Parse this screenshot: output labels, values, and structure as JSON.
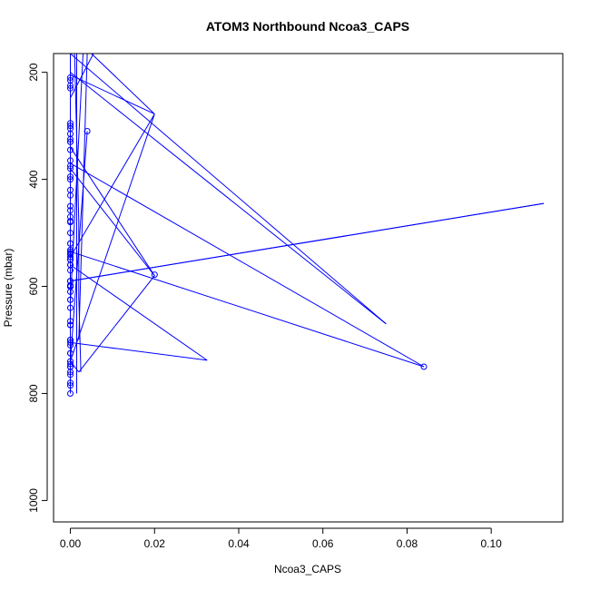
{
  "chart_data": {
    "type": "scatter",
    "title": "ATOM3 Northbound Ncoa3_CAPS",
    "xlabel": "Ncoa3_CAPS",
    "ylabel": "Pressure (mbar)",
    "xlim": [
      -0.004,
      0.117
    ],
    "ylim": [
      1040,
      165
    ],
    "y_reversed": true,
    "x_ticks": [
      "0.00",
      "0.02",
      "0.04",
      "0.06",
      "0.08",
      "0.10"
    ],
    "x_tick_values": [
      0,
      0.02,
      0.04,
      0.06,
      0.08,
      0.1
    ],
    "y_ticks": [
      "200",
      "400",
      "600",
      "800",
      "1000"
    ],
    "y_tick_values": [
      200,
      400,
      600,
      800,
      1000
    ],
    "grid": false,
    "color": "#0000ff",
    "series": [
      {
        "x": [
          0.0,
          0.0,
          0.0,
          0.0,
          0.0,
          0.0,
          0.0,
          0.0,
          0.0,
          0.0,
          0.0,
          0.0,
          0.0,
          0.02,
          0.0,
          0.0,
          0.0,
          0.0,
          0.0,
          0.0,
          0.0,
          0.0,
          0.084,
          0.0,
          0.0,
          0.0,
          0.0,
          0.0,
          0.004,
          0.0,
          0.0,
          0.0,
          0.0,
          0.0,
          0.0,
          0.0,
          0.0,
          0.0,
          0.0,
          0.0,
          0.0,
          0.0,
          0.0,
          0.0,
          0.0,
          0.0,
          0.0,
          0.0,
          0.0,
          0.0,
          0.0,
          0.0,
          0.0,
          0.0,
          0.0,
          0.0,
          0.0,
          0.0,
          0.0,
          0.0,
          0.0,
          0.0,
          0.0,
          0.0,
          0.0,
          0.0,
          0.0,
          0.0,
          0.0
        ],
        "y": [
          800,
          785,
          780,
          765,
          750,
          740,
          725,
          710,
          700,
          672,
          665,
          625,
          598,
          578,
          590,
          560,
          550,
          545,
          538,
          532,
          520,
          500,
          750,
          478,
          458,
          430,
          420,
          395,
          310,
          380,
          375,
          365,
          345,
          330,
          325,
          315,
          305,
          295,
          225,
          215,
          210,
          480,
          600,
          625,
          540,
          725,
          750,
          700,
          600,
          400,
          330,
          230,
          470,
          535,
          600,
          672,
          705,
          745,
          760,
          640,
          520,
          450,
          300,
          550,
          560,
          570,
          590,
          600,
          610
        ]
      }
    ],
    "lines": [
      [
        [
          0.0,
          800
        ],
        [
          0.0,
          720
        ],
        [
          0.0,
          640
        ],
        [
          0.0,
          560
        ],
        [
          0.0,
          470
        ],
        [
          0.0,
          380
        ],
        [
          0.0,
          290
        ],
        [
          0.0,
          200
        ],
        [
          0.0,
          165
        ]
      ],
      [
        [
          0.0015,
          800
        ],
        [
          0.0015,
          300
        ],
        [
          0.0015,
          165
        ]
      ],
      [
        [
          0.0025,
          760
        ],
        [
          0.002,
          620
        ],
        [
          0.002,
          480
        ],
        [
          0.001,
          165
        ]
      ],
      [
        [
          0.004,
          310
        ],
        [
          0.0,
          740
        ],
        [
          0.002,
          760
        ]
      ],
      [
        [
          0.002,
          760
        ],
        [
          0.02,
          580
        ],
        [
          0.0,
          380
        ]
      ],
      [
        [
          0.0,
          598
        ],
        [
          0.0,
          590
        ],
        [
          0.1125,
          445
        ]
      ],
      [
        [
          0.0,
          590
        ],
        [
          0.1125,
          445
        ]
      ],
      [
        [
          0.0,
          535
        ],
        [
          0.084,
          750
        ]
      ],
      [
        [
          0.0,
          370
        ],
        [
          0.084,
          750
        ]
      ],
      [
        [
          0.0,
          560
        ],
        [
          0.0325,
          738
        ],
        [
          0.0,
          705
        ]
      ],
      [
        [
          0.0,
          545
        ],
        [
          0.02,
          278
        ],
        [
          0.0,
          740
        ]
      ],
      [
        [
          0.0,
          340
        ],
        [
          0.02,
          580
        ]
      ],
      [
        [
          0.0,
          200
        ],
        [
          0.075,
          670
        ]
      ],
      [
        [
          0.0,
          248
        ],
        [
          0.0055,
          165
        ]
      ],
      [
        [
          0.0,
          205
        ],
        [
          0.02,
          278
        ],
        [
          0.005,
          165
        ]
      ],
      [
        [
          0.0,
          165
        ],
        [
          0.075,
          670
        ]
      ],
      [
        [
          0.002,
          700
        ],
        [
          0.004,
          165
        ]
      ],
      [
        [
          0.0,
          630
        ],
        [
          0.003,
          165
        ]
      ],
      [
        [
          0.001,
          165
        ],
        [
          0.0055,
          165
        ]
      ]
    ]
  }
}
